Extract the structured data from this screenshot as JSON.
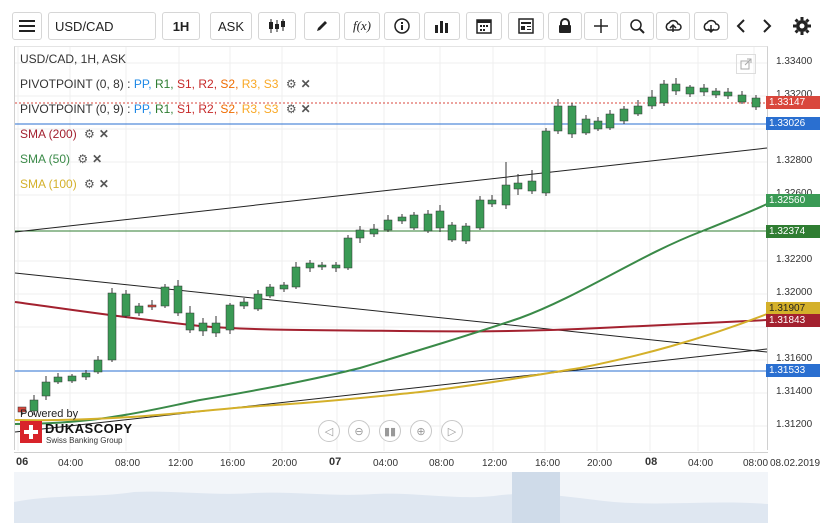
{
  "toolbar": {
    "symbol": "USD/CAD",
    "timeframe": "1H",
    "side": "ASK",
    "function_label": "f(x)",
    "icons": [
      "menu-icon",
      "candles-icon",
      "pencil-icon",
      "function-icon",
      "info-icon",
      "bar-chart-icon",
      "calendar-icon",
      "news-icon",
      "lock-icon",
      "crosshair-icon",
      "zoom-icon",
      "upload-icon",
      "download-icon",
      "chevron-left-icon",
      "chevron-right-icon",
      "gear-icon"
    ]
  },
  "legend": {
    "header": "USD/CAD, 1H, ASK",
    "pivot1_name": "PIVOTPOINT (0, 8)",
    "pivot2_name": "PIVOTPOINT (0, 9)",
    "pivot_sep": " : ",
    "pivot_levels": [
      "PP,",
      "R1,",
      "S1,",
      "R2,",
      "S2,",
      "R3,",
      "S3"
    ],
    "pivot_colors": [
      "#1e88e5",
      "#2e7d32",
      "#c62828",
      "#c62828",
      "#ef6c00",
      "#f9a825",
      "#f9a825"
    ],
    "sma200": "SMA (200)",
    "sma50": "SMA (50)",
    "sma100": "SMA (100)"
  },
  "colors": {
    "up": "#3a9a55",
    "down": "#d9473c",
    "sma200": "#a3212f",
    "sma50": "#3a8a48",
    "sma100": "#d4b02a",
    "pp": "#2a6fd0"
  },
  "price_axis": {
    "labels": [
      "1.33400",
      "1.33200",
      "1.32800",
      "1.32600",
      "1.32200",
      "1.32000",
      "1.31600",
      "1.31400",
      "1.31200"
    ],
    "tags": [
      {
        "value": "1.33147",
        "bg": "#d9473c"
      },
      {
        "value": "1.33026",
        "bg": "#2a6fd0"
      },
      {
        "value": "1.32560",
        "bg": "#3a9a55"
      },
      {
        "value": "1.32374",
        "bg": "#2f7d32"
      },
      {
        "value": "1.31907",
        "bg": "#d4b02a",
        "fg": "#222"
      },
      {
        "value": "1.31843",
        "bg": "#a3212f"
      },
      {
        "value": "1.31533",
        "bg": "#2a6fd0"
      }
    ]
  },
  "time_axis": {
    "labels": [
      "06",
      "04:00",
      "08:00",
      "12:00",
      "16:00",
      "20:00",
      "07",
      "04:00",
      "08:00",
      "12:00",
      "16:00",
      "20:00",
      "08",
      "04:00",
      "08:00",
      "08.02.2019"
    ]
  },
  "branding": {
    "powered_by": "Powered by",
    "name": "DUKASCOPY",
    "tagline": "Swiss Banking Group"
  }
}
